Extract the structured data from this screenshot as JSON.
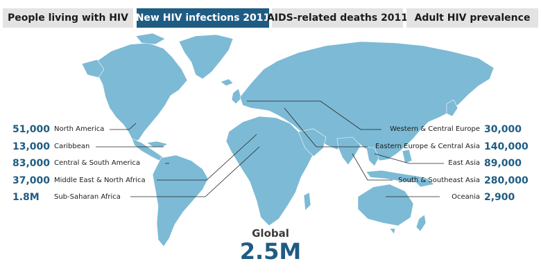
{
  "tabs": [
    {
      "label": "People living with HIV",
      "active": false
    },
    {
      "label": "New HIV infections 2011",
      "active": true
    },
    {
      "label": "AIDS-related deaths 2011",
      "active": false
    },
    {
      "label": "Adult HIV prevalence",
      "active": false
    }
  ],
  "regions_left": [
    {
      "name": "North America",
      "value": "51,000"
    },
    {
      "name": "Caribbean",
      "value": "13,000"
    },
    {
      "name": "Central & South America",
      "value": "83,000"
    },
    {
      "name": "Middle East & North Africa",
      "value": "37,000"
    },
    {
      "name": "Sub-Saharan Africa",
      "value": "1.8M"
    }
  ],
  "regions_right": [
    {
      "name": "Western & Central Europe",
      "value": "30,000"
    },
    {
      "name": "Eastern Europe & Central Asia",
      "value": "140,000"
    },
    {
      "name": "East Asia",
      "value": "89,000"
    },
    {
      "name": "South & Southeast Asia",
      "value": "280,000"
    },
    {
      "name": "Oceania",
      "value": "2,900"
    }
  ],
  "global": {
    "label": "Global",
    "value": "2.5M"
  },
  "colors": {
    "land": "#7dbad5",
    "accent": "#1f5c83",
    "tab_bg": "#e3e3e3",
    "leader_line": "#222222"
  }
}
